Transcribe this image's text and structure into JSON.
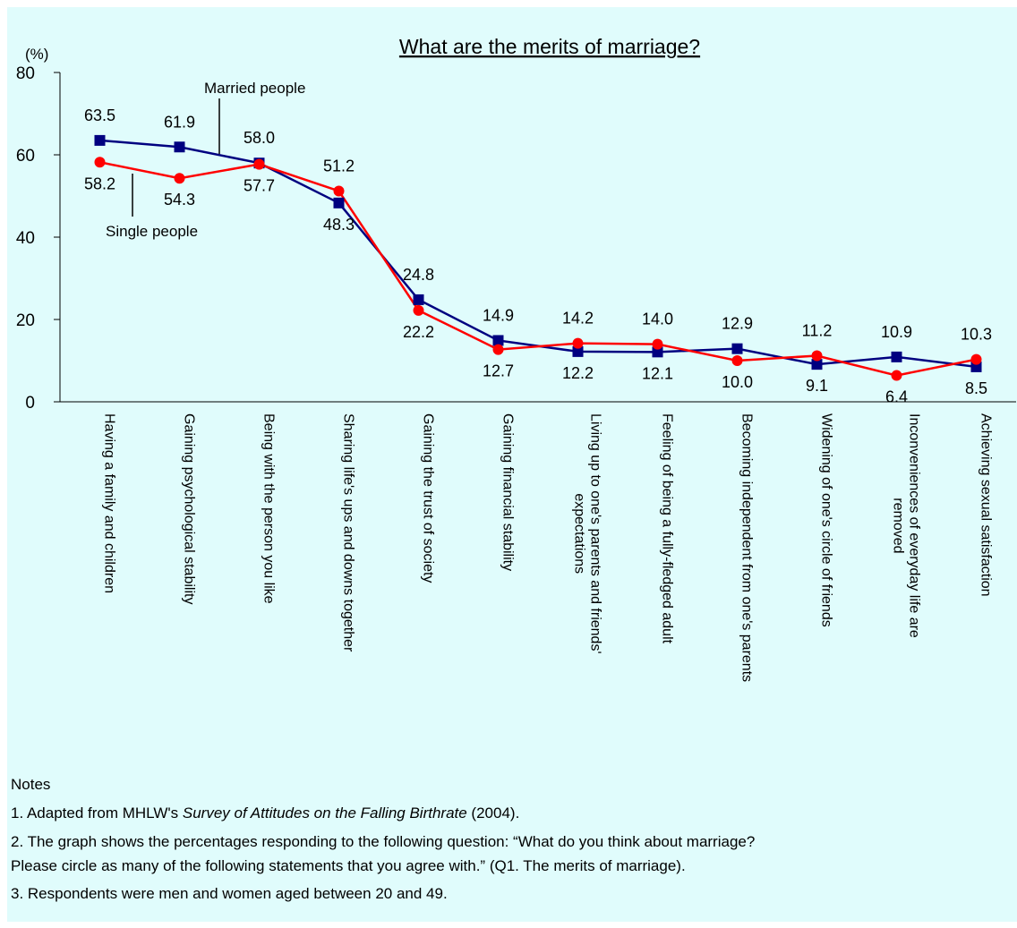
{
  "chart_data": {
    "type": "line",
    "title": "What are the merits of marriage?",
    "y_unit_label": "(%)",
    "categories": [
      "Having a family and children",
      "Gaining psychological stability",
      "Being with the person you like",
      "Sharing life's ups and downs together",
      "Gaining the trust of society",
      "Gaining financial stability",
      "Living up to one's parents and friends'\nexpectations",
      "Feeling of being a fully-fledged adult",
      "Becoming independent from one's parents",
      "Widening of one's circle of friends",
      "Inconveniences of everyday life are\nremoved",
      "Achieving sexual satisfaction"
    ],
    "series": [
      {
        "name": "Married people",
        "color": "#000080",
        "marker": "square",
        "values": [
          63.5,
          61.9,
          58.0,
          48.3,
          24.8,
          14.9,
          12.2,
          12.1,
          12.9,
          9.1,
          10.9,
          8.5
        ],
        "value_labels": [
          "63.5",
          "61.9",
          "58.0",
          "48.3",
          "24.8",
          "14.9",
          "12.2",
          "12.1",
          "12.9",
          "9.1",
          "10.9",
          "8.5"
        ]
      },
      {
        "name": "Single people",
        "color": "#ff0000",
        "marker": "circle",
        "values": [
          58.2,
          54.3,
          57.7,
          51.2,
          22.2,
          12.7,
          14.2,
          14.0,
          10.0,
          11.2,
          6.4,
          10.3
        ],
        "value_labels": [
          "58.2",
          "54.3",
          "57.7",
          "51.2",
          "22.2",
          "12.7",
          "14.2",
          "14.0",
          "10.0",
          "11.2",
          "6.4",
          "10.3"
        ]
      }
    ],
    "ylim": [
      0,
      80
    ],
    "yticks": [
      0,
      20,
      40,
      60,
      80
    ],
    "grid": false,
    "notes": {
      "heading": "Notes",
      "lines": [
        {
          "prefix": "1. Adapted from MHLW's ",
          "italic": "Survey of Attitudes on the Falling Birthrate",
          "suffix": " (2004)."
        },
        {
          "text": "2. The graph shows the percentages responding to the following question: “What do you think about marriage?"
        },
        {
          "text": "Please circle as many of the following statements that you agree with.” (Q1. The merits of marriage)."
        },
        {
          "text": "3. Respondents were men and women aged between 20 and 49."
        }
      ]
    }
  }
}
